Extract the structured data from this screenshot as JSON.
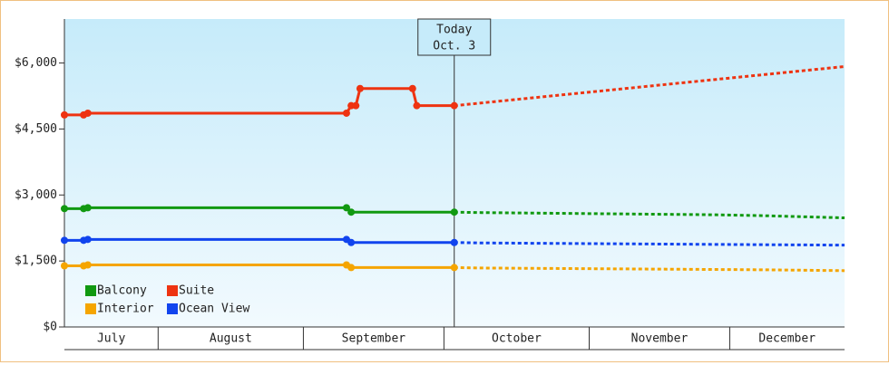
{
  "chart_data": {
    "type": "line",
    "xlim": [
      11,
      177.5
    ],
    "ylim": [
      0,
      7000
    ],
    "yticks": [
      {
        "value": 0,
        "label": "$0"
      },
      {
        "value": 1500,
        "label": "$1,500"
      },
      {
        "value": 3000,
        "label": "$3,000"
      },
      {
        "value": 4500,
        "label": "$4,500"
      },
      {
        "value": 6000,
        "label": "$6,000"
      }
    ],
    "months": [
      {
        "name": "July",
        "from": 11,
        "to": 31
      },
      {
        "name": "August",
        "from": 31,
        "to": 62
      },
      {
        "name": "September",
        "from": 62,
        "to": 92
      },
      {
        "name": "October",
        "from": 92,
        "to": 123
      },
      {
        "name": "November",
        "from": 123,
        "to": 153
      },
      {
        "name": "December",
        "from": 153,
        "to": 177.5
      }
    ],
    "today": {
      "line1": "Today",
      "line2": "Oct. 3",
      "x": 94.2
    },
    "series": [
      {
        "name": "Balcony",
        "color": "#119911",
        "x": [
          11,
          15.1,
          16,
          71.2,
          72.2,
          94.2
        ],
        "values": [
          2690,
          2690,
          2710,
          2710,
          2610,
          2610
        ],
        "forecast_x": [
          94.2,
          100,
          110,
          130,
          150,
          160,
          177.5
        ],
        "forecast_values": [
          2610,
          2600,
          2590,
          2570,
          2550,
          2530,
          2480
        ]
      },
      {
        "name": "Suite",
        "color": "#ee3311",
        "x": [
          11,
          15.1,
          16,
          71.2,
          72.2,
          73.2,
          74.1,
          85.3,
          86.2,
          94.2
        ],
        "values": [
          4820,
          4820,
          4860,
          4860,
          5030,
          5030,
          5420,
          5420,
          5030,
          5030
        ],
        "forecast_x": [
          94.2,
          177.5
        ],
        "forecast_values": [
          5030,
          5920
        ]
      },
      {
        "name": "Interior",
        "color": "#f5a500",
        "x": [
          11,
          15.1,
          16,
          71.2,
          72.2,
          94.2
        ],
        "values": [
          1390,
          1390,
          1410,
          1410,
          1350,
          1350
        ],
        "forecast_x": [
          94.2,
          100,
          130,
          160,
          177.5
        ],
        "forecast_values": [
          1350,
          1340,
          1320,
          1300,
          1280
        ]
      },
      {
        "name": "Ocean View",
        "color": "#1144ee",
        "x": [
          11,
          15.1,
          16,
          71.2,
          72.2,
          94.2
        ],
        "values": [
          1970,
          1970,
          1990,
          1990,
          1920,
          1920
        ],
        "forecast_x": [
          94.2,
          100,
          130,
          160,
          177.5
        ],
        "forecast_values": [
          1920,
          1910,
          1890,
          1870,
          1860
        ]
      }
    ]
  }
}
